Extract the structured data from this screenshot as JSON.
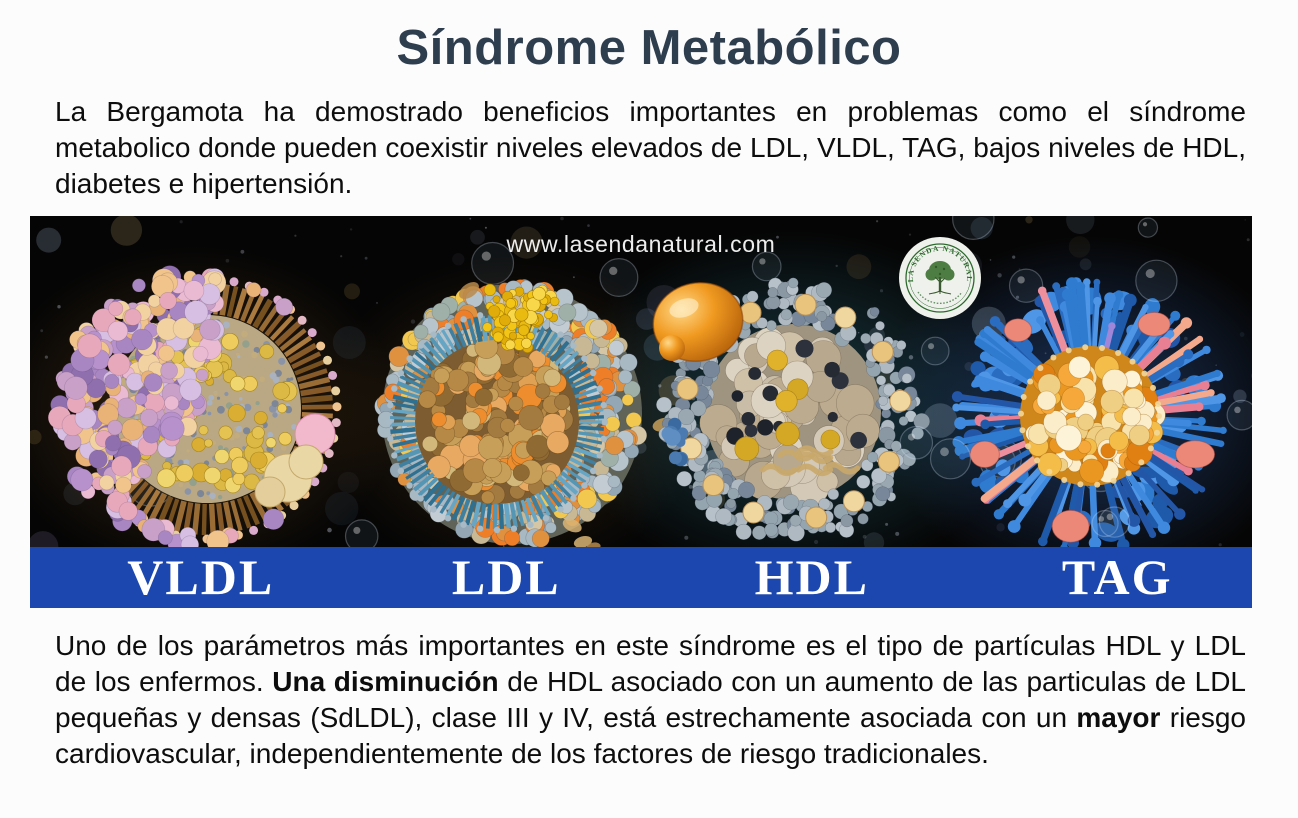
{
  "page": {
    "title": "Síndrome Metabólico"
  },
  "intro": {
    "text": "La Bergamota ha demostrado beneficios importantes en problemas como el síndrome metabolico donde pueden coexistir niveles elevados de LDL, VLDL, TAG, bajos niveles de HDL, diabetes e hipertensión."
  },
  "figure": {
    "watermark": "www.lasendanatural.com",
    "logo": {
      "brand": "LA SENDA NATURAL"
    },
    "labels": [
      "VLDL",
      "LDL",
      "HDL",
      "TAG"
    ]
  },
  "outro": {
    "segments": [
      {
        "text": "Uno de los parámetros más importantes en este síndrome es el tipo de partículas HDL y LDL de los enfermos. ",
        "bold": false
      },
      {
        "text": "Una disminución",
        "bold": true
      },
      {
        "text": " de HDL asociado con un aumento de las particulas de LDL pequeñas y densas (SdLDL), clase III y IV, está estrechamente asociada con un ",
        "bold": false
      },
      {
        "text": "mayor",
        "bold": true
      },
      {
        "text": " riesgo cardiovascular, independientemente de los factores de riesgo tradicionales.",
        "bold": false
      }
    ]
  },
  "theme": {
    "title_color": "#2f3e4f",
    "text_color": "#0d0d0d",
    "banner_blue": "#1c47ae",
    "banner_text_color": "#ffffff",
    "logo_green": "#2d6a2d",
    "panel_background": "#050505",
    "watermark_color": "#ffffff"
  }
}
